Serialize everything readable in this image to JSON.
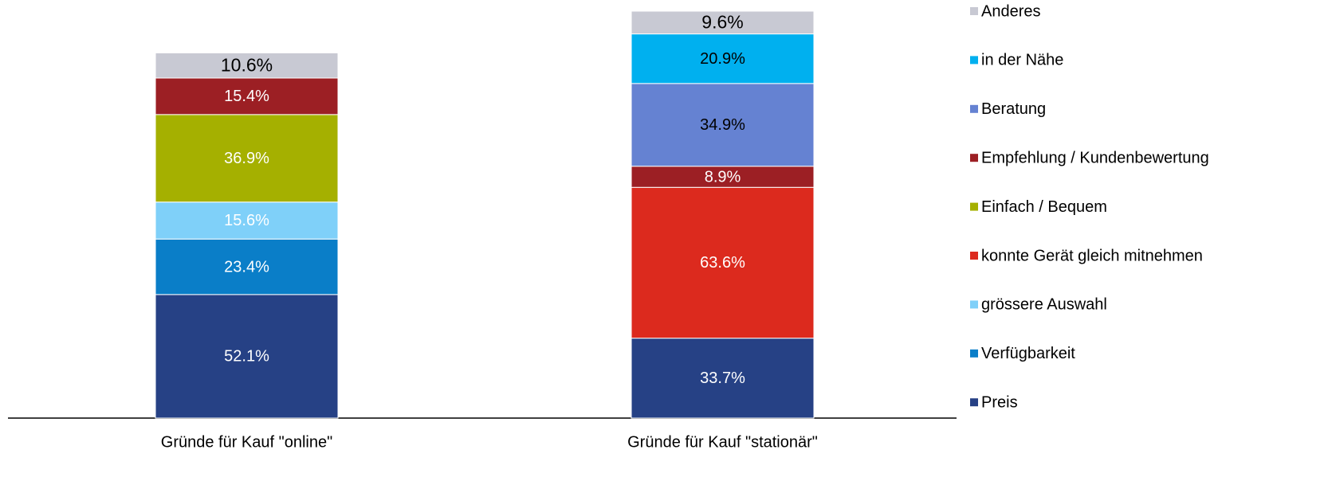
{
  "chart_data": {
    "type": "stacked_bar",
    "categories": [
      "Gründe für Kauf \"online\"",
      "Gründe für Kauf \"stationär\""
    ],
    "series": [
      {
        "name": "Preis",
        "color": "#264185",
        "label_color": "#ffffff",
        "values": [
          52.1,
          33.7
        ],
        "value_labels": [
          "52.1%",
          "33.7%"
        ]
      },
      {
        "name": "Verfügbarkeit",
        "color": "#0a7ec8",
        "label_color": "#ffffff",
        "values": [
          23.4,
          null
        ],
        "value_labels": [
          "23.4%",
          null
        ]
      },
      {
        "name": "grössere Auswahl",
        "color": "#7fd0f9",
        "label_color": "#ffffff",
        "values": [
          15.6,
          null
        ],
        "value_labels": [
          "15.6%",
          null
        ]
      },
      {
        "name": "konnte Gerät gleich mitnehmen",
        "color": "#dc2a1e",
        "label_color": "#ffffff",
        "values": [
          null,
          63.6
        ],
        "value_labels": [
          null,
          "63.6%"
        ]
      },
      {
        "name": "Einfach / Bequem",
        "color": "#a5b000",
        "label_color": "#ffffff",
        "values": [
          36.9,
          null
        ],
        "value_labels": [
          "36.9%",
          null
        ]
      },
      {
        "name": "Empfehlung / Kundenbewertung",
        "color": "#9c1f24",
        "label_color": "#ffffff",
        "values": [
          15.4,
          8.9
        ],
        "value_labels": [
          "15.4%",
          "8.9%"
        ]
      },
      {
        "name": "Beratung",
        "color": "#6582d2",
        "label_color": "#000000",
        "values": [
          null,
          34.9
        ],
        "value_labels": [
          null,
          "34.9%"
        ]
      },
      {
        "name": "in der Nähe",
        "color": "#00b0ef",
        "label_color": "#000000",
        "values": [
          null,
          20.9
        ],
        "value_labels": [
          null,
          "20.9%"
        ]
      },
      {
        "name": "Anderes",
        "color": "#c8c9d3",
        "label_color": "#000000",
        "values": [
          10.6,
          9.6
        ],
        "value_labels": [
          "10.6%",
          "9.6%"
        ]
      }
    ]
  }
}
